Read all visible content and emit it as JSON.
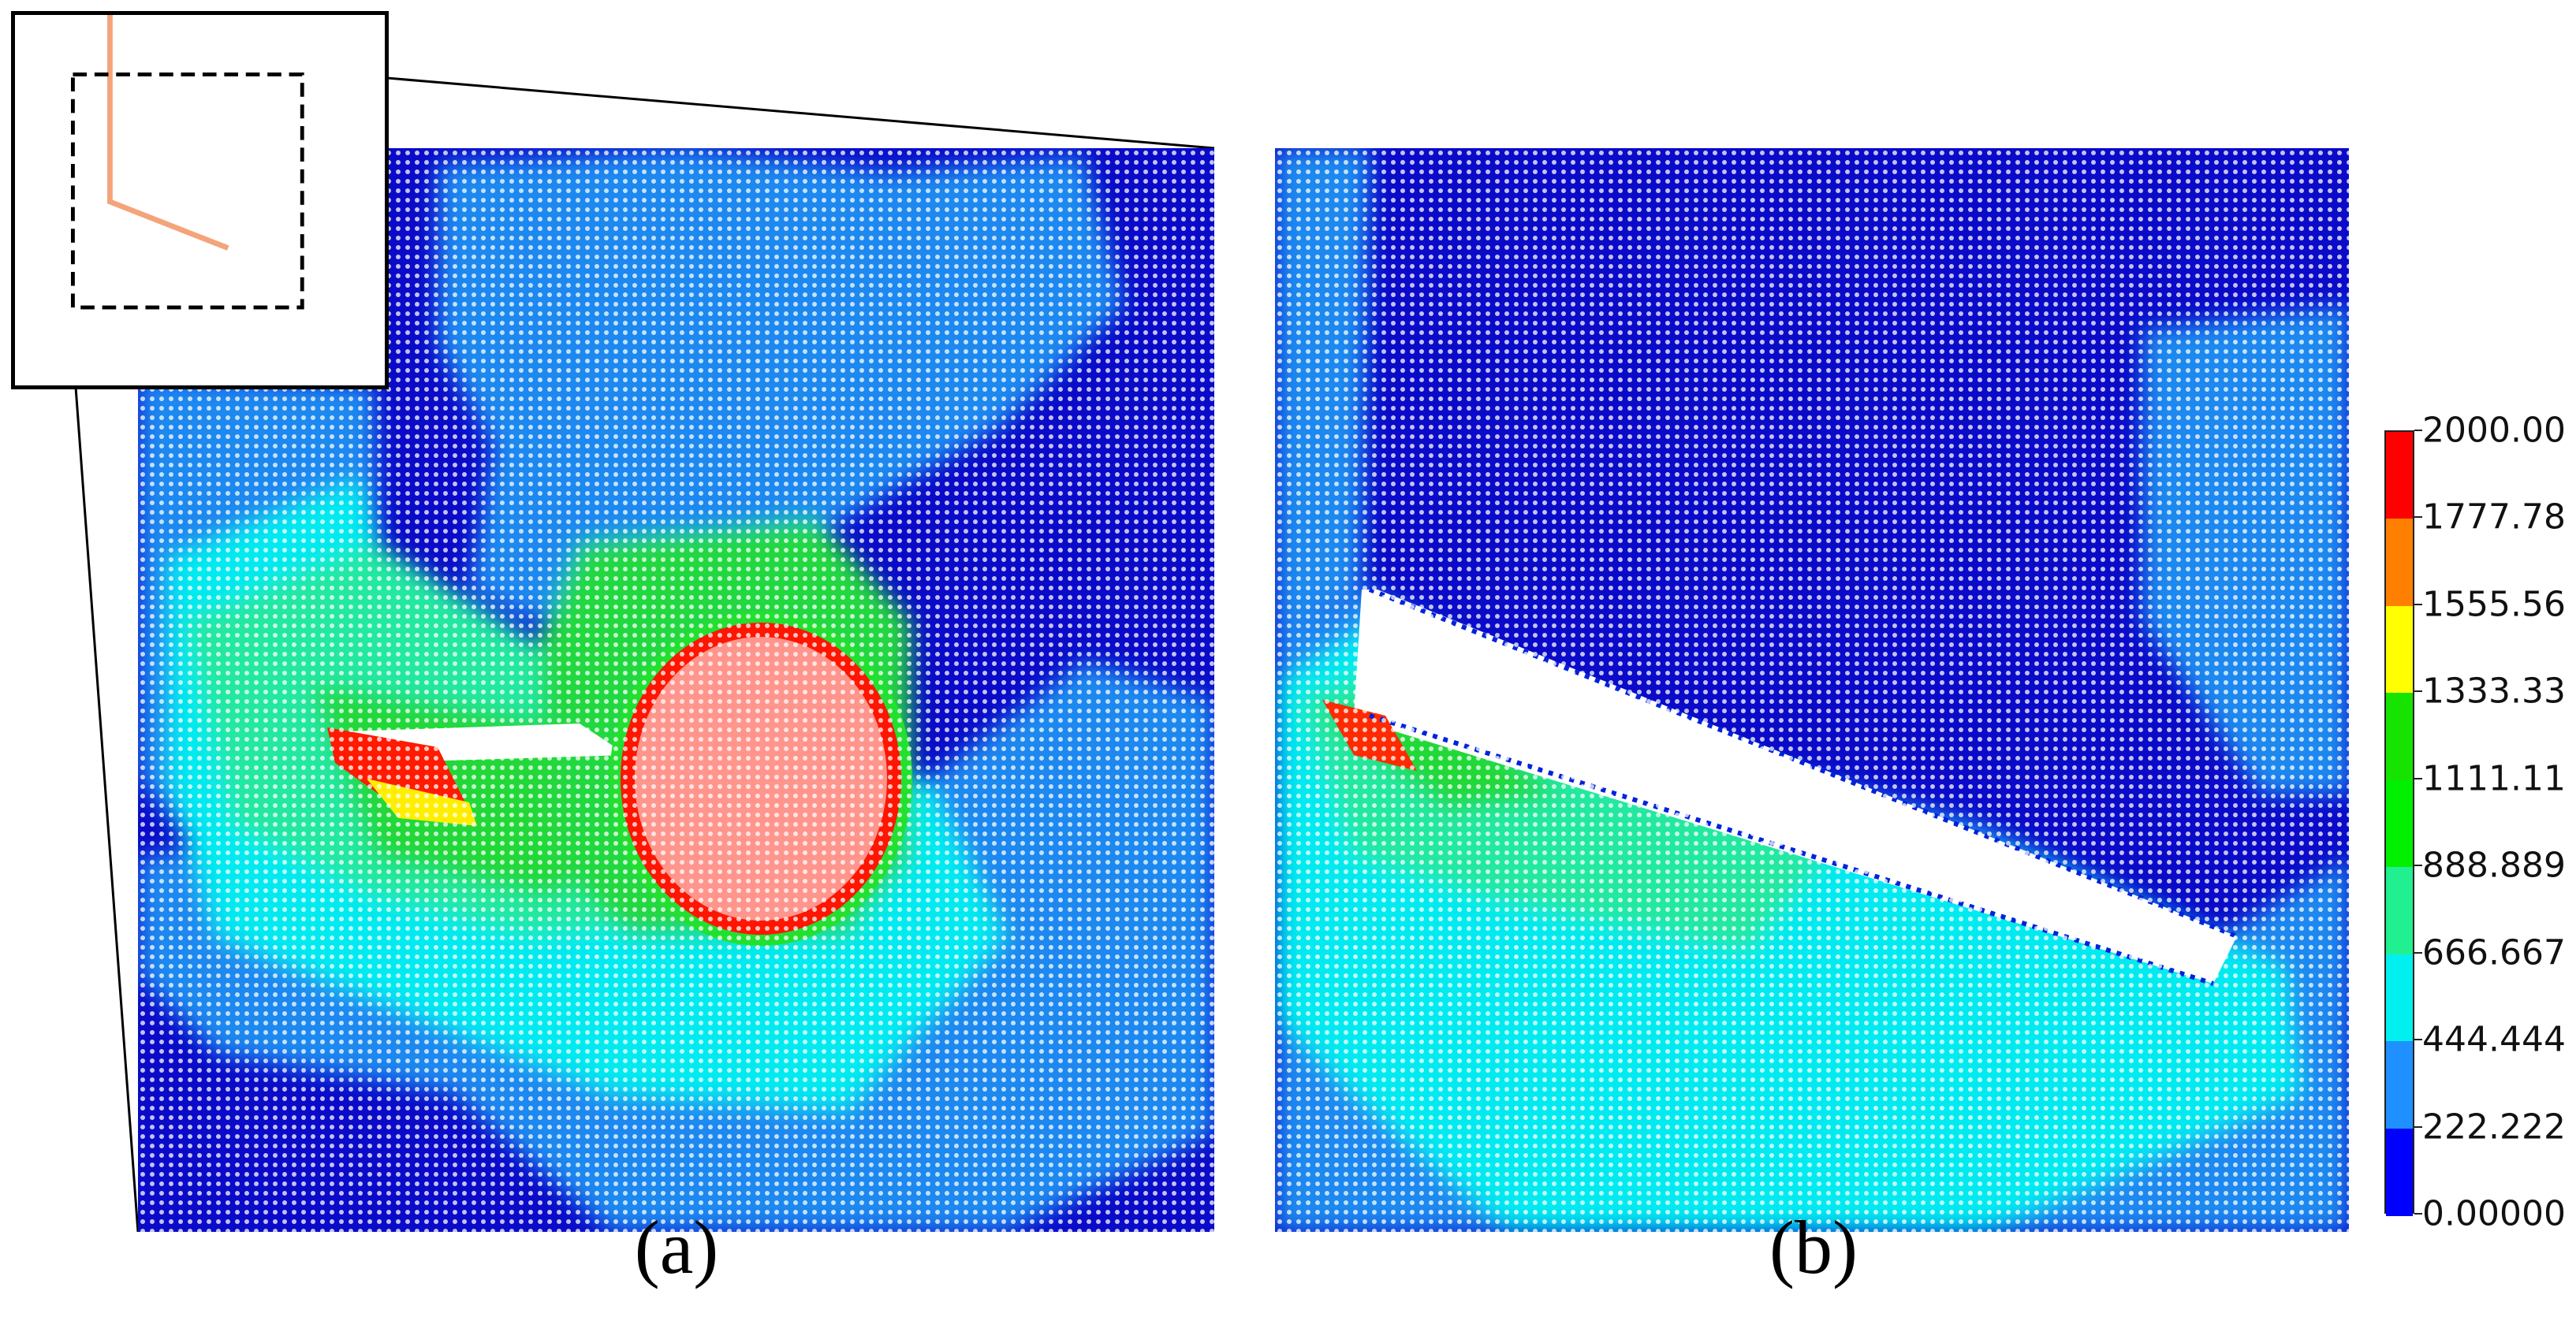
{
  "captions": {
    "a": "(a)",
    "b": "(b)"
  },
  "colorbar": {
    "labels": [
      "2000.00",
      "1777.78",
      "1555.56",
      "1333.33",
      "1111.11",
      "888.889",
      "666.667",
      "444.444",
      "222.222",
      "0.00000"
    ],
    "colors": [
      "#ff0000",
      "#ff8000",
      "#ffff00",
      "#16e300",
      "#00f000",
      "#20f090",
      "#00f0f0",
      "#1e90ff",
      "#0000ff"
    ]
  },
  "colors": {
    "background": "#0a0ac8",
    "dots": "#ffffff",
    "inset_path": "#f4a47a"
  }
}
